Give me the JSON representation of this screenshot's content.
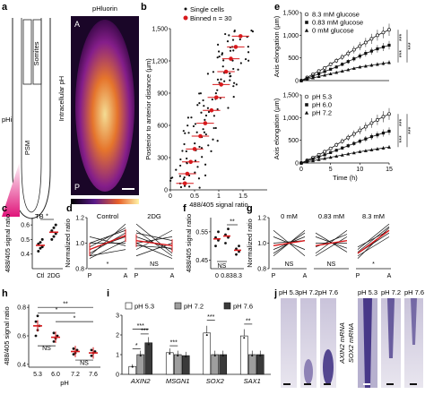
{
  "panels": {
    "a": {
      "letter": "a",
      "psm": "PSM",
      "somites": "Somites",
      "tb": "TB",
      "phi": "pHi",
      "image_title": "pHluorin",
      "image_ylabel": "Intracellular pH",
      "label_A": "A",
      "label_P": "P"
    },
    "b": {
      "letter": "b"
    },
    "c": {
      "letter": "c"
    },
    "d": {
      "letter": "d"
    },
    "e": {
      "letter": "e"
    },
    "f": {
      "letter": "f"
    },
    "g": {
      "letter": "g"
    },
    "h": {
      "letter": "h"
    },
    "i": {
      "letter": "i"
    },
    "j": {
      "letter": "j"
    }
  },
  "colors": {
    "red": "#d7191c",
    "gray_light": "#ffffff",
    "gray_mid": "#9e9e9e",
    "gray_dark": "#3a3a3a",
    "magenta": "#e0157a",
    "stain": "#3b2b80"
  },
  "chart_data": [
    {
      "id": "b",
      "type": "scatter",
      "xlabel": "488/405 signal ratio",
      "ylabel": "Posterior to anterior distance (µm)",
      "xlim": [
        0,
        2
      ],
      "ylim": [
        0,
        1500
      ],
      "xticks": [
        "0",
        "0.5",
        "1",
        "1.5"
      ],
      "xtick_values": [
        0,
        0.5,
        1,
        1.5
      ],
      "yticks": [
        "0",
        "300",
        "600",
        "900",
        "1,200",
        "1,500"
      ],
      "ytick_values": [
        0,
        300,
        600,
        900,
        1200,
        1500
      ],
      "legend": [
        "Single cells",
        "Binned n = 30"
      ],
      "binned": [
        {
          "x": 0.3,
          "y": 60
        },
        {
          "x": 0.35,
          "y": 150
        },
        {
          "x": 0.42,
          "y": 260
        },
        {
          "x": 0.5,
          "y": 380
        },
        {
          "x": 0.62,
          "y": 500
        },
        {
          "x": 0.72,
          "y": 620
        },
        {
          "x": 0.85,
          "y": 740
        },
        {
          "x": 0.95,
          "y": 860
        },
        {
          "x": 1.05,
          "y": 980
        },
        {
          "x": 1.15,
          "y": 1100
        },
        {
          "x": 1.25,
          "y": 1220
        },
        {
          "x": 1.35,
          "y": 1330
        },
        {
          "x": 1.45,
          "y": 1430
        }
      ]
    },
    {
      "id": "c",
      "type": "scatter",
      "ylabel": "488/405 signal ratio",
      "categories": [
        "Ctl",
        "2DG"
      ],
      "ylim": [
        0.3,
        0.65
      ],
      "yticks": [
        "0.4",
        "0.5",
        "0.6"
      ],
      "ytick_values": [
        0.4,
        0.5,
        0.6
      ],
      "significance": "*",
      "points": {
        "Ctl": [
          0.42,
          0.44,
          0.45,
          0.47,
          0.48,
          0.5
        ],
        "2DG": [
          0.5,
          0.52,
          0.54,
          0.56,
          0.58,
          0.6
        ]
      },
      "means": {
        "Ctl": 0.46,
        "2DG": 0.55
      }
    },
    {
      "id": "d",
      "type": "line",
      "ylabel": "Normalized ratio",
      "groups": [
        "Control",
        "2DG"
      ],
      "categories": [
        "P",
        "A"
      ],
      "ylim": [
        0.8,
        1.2
      ],
      "yticks": [
        "0.8",
        "1.0",
        "1.2"
      ],
      "ytick_values": [
        0.8,
        1.0,
        1.2
      ],
      "significance": [
        "*",
        "NS"
      ],
      "lines": {
        "Control": [
          [
            0.9,
            1.15
          ],
          [
            0.95,
            1.05
          ],
          [
            1.0,
            1.1
          ],
          [
            0.92,
            1.08
          ],
          [
            0.88,
            1.02
          ],
          [
            0.97,
            1.12
          ],
          [
            1.05,
            0.98
          ],
          [
            0.9,
            0.95
          ],
          [
            1.0,
            1.0
          ]
        ],
        "2DG": [
          [
            1.1,
            0.9
          ],
          [
            1.0,
            1.05
          ],
          [
            1.05,
            0.95
          ],
          [
            0.95,
            1.1
          ],
          [
            1.15,
            0.92
          ],
          [
            0.9,
            1.0
          ],
          [
            1.0,
            0.88
          ],
          [
            1.08,
            1.02
          ],
          [
            0.98,
            0.96
          ]
        ]
      },
      "means": {
        "Control": [
          0.95,
          1.06
        ],
        "2DG": [
          1.02,
          0.98
        ]
      }
    },
    {
      "id": "e",
      "type": "line",
      "xlabel": "Time (h)",
      "ylabel": "Axis elongation (µm)",
      "xlim": [
        0,
        15
      ],
      "xticks": [
        "0",
        "5",
        "10",
        "15"
      ],
      "xtick_values": [
        0,
        5,
        10,
        15
      ],
      "ylim": [
        0,
        1500
      ],
      "yticks": [
        "0",
        "500",
        "1,000",
        "1,500"
      ],
      "ytick_values": [
        0,
        500,
        1000,
        1500
      ],
      "subplots": [
        {
          "significance": [
            "***",
            "***",
            "***"
          ],
          "series": [
            {
              "name": "8.3 mM glucose",
              "marker": "circle-open",
              "x": [
                0,
                1,
                2,
                3,
                4,
                5,
                6,
                7,
                8,
                9,
                10,
                11,
                12,
                13,
                14,
                15
              ],
              "values": [
                0,
                70,
                140,
                210,
                280,
                360,
                440,
                520,
                600,
                680,
                760,
                840,
                920,
                1000,
                1060,
                1120
              ]
            },
            {
              "name": "0.83 mM glucose",
              "marker": "square",
              "x": [
                0,
                1,
                2,
                3,
                4,
                5,
                6,
                7,
                8,
                9,
                10,
                11,
                12,
                13,
                14,
                15
              ],
              "values": [
                0,
                50,
                100,
                150,
                200,
                250,
                300,
                360,
                420,
                480,
                540,
                600,
                650,
                700,
                740,
                780
              ]
            },
            {
              "name": "0 mM glucose",
              "marker": "triangle",
              "x": [
                0,
                1,
                2,
                3,
                4,
                5,
                6,
                7,
                8,
                9,
                10,
                11,
                12,
                13,
                14,
                15
              ],
              "values": [
                0,
                30,
                60,
                90,
                120,
                150,
                180,
                210,
                240,
                270,
                300,
                320,
                340,
                360,
                380,
                400
              ]
            }
          ]
        },
        {
          "significance": [
            "***",
            "***",
            "***"
          ],
          "series": [
            {
              "name": "pH 5.3",
              "marker": "circle-open",
              "x": [
                0,
                1,
                2,
                3,
                4,
                5,
                6,
                7,
                8,
                9,
                10,
                11,
                12,
                13,
                14,
                15
              ],
              "values": [
                0,
                60,
                120,
                180,
                250,
                320,
                400,
                480,
                560,
                640,
                720,
                800,
                880,
                950,
                1020,
                1080
              ]
            },
            {
              "name": "pH 6.0",
              "marker": "square",
              "x": [
                0,
                1,
                2,
                3,
                4,
                5,
                6,
                7,
                8,
                9,
                10,
                11,
                12,
                13,
                14,
                15
              ],
              "values": [
                0,
                45,
                90,
                135,
                180,
                230,
                280,
                330,
                380,
                430,
                480,
                530,
                580,
                620,
                660,
                700
              ]
            },
            {
              "name": "pH 7.2",
              "marker": "triangle",
              "x": [
                0,
                1,
                2,
                3,
                4,
                5,
                6,
                7,
                8,
                9,
                10,
                11,
                12,
                13,
                14,
                15
              ],
              "values": [
                0,
                25,
                50,
                75,
                100,
                125,
                150,
                175,
                200,
                225,
                250,
                270,
                290,
                310,
                330,
                350
              ]
            }
          ]
        }
      ]
    },
    {
      "id": "f",
      "type": "scatter",
      "ylabel": "488/405 signal ratio",
      "categories": [
        "0",
        "0.83",
        "8.3"
      ],
      "ylim": [
        0.42,
        0.6
      ],
      "yticks": [
        "0.45",
        "0.55"
      ],
      "ytick_values": [
        0.45,
        0.55
      ],
      "significance": [
        "NS",
        "**"
      ],
      "points": {
        "0": [
          0.5,
          0.52,
          0.53,
          0.55
        ],
        "0.83": [
          0.51,
          0.53,
          0.54,
          0.56
        ],
        "8.3": [
          0.47,
          0.48,
          0.49,
          0.5
        ]
      },
      "means": {
        "0": 0.525,
        "0.83": 0.535,
        "8.3": 0.485
      }
    },
    {
      "id": "g",
      "type": "line",
      "ylabel": "Normalized ratio",
      "groups": [
        "0 mM",
        "0.83 mM",
        "8.3 mM"
      ],
      "categories": [
        "P",
        "A"
      ],
      "ylim": [
        0.8,
        1.2
      ],
      "yticks": [
        "0.8",
        "1.0",
        "1.2"
      ],
      "ytick_values": [
        0.8,
        1.0,
        1.2
      ],
      "significance": [
        "NS",
        "NS",
        "*"
      ],
      "lines": {
        "0 mM": [
          [
            0.9,
            1.1
          ],
          [
            1.05,
            0.95
          ],
          [
            0.95,
            1.05
          ],
          [
            1.0,
            1.02
          ],
          [
            1.1,
            0.9
          ],
          [
            0.92,
            1.08
          ]
        ],
        "0.83 mM": [
          [
            0.92,
            1.1
          ],
          [
            1.05,
            0.96
          ],
          [
            0.97,
            1.07
          ],
          [
            1.0,
            1.0
          ],
          [
            1.08,
            0.93
          ],
          [
            0.9,
            1.05
          ]
        ],
        "8.3 mM": [
          [
            0.88,
            1.12
          ],
          [
            0.92,
            1.08
          ],
          [
            0.95,
            1.15
          ],
          [
            0.9,
            1.05
          ],
          [
            0.97,
            1.1
          ],
          [
            0.93,
            1.13
          ]
        ]
      },
      "means": {
        "0 mM": [
          0.98,
          1.02
        ],
        "0.83 mM": [
          0.98,
          1.02
        ],
        "8.3 mM": [
          0.92,
          1.1
        ]
      }
    },
    {
      "id": "h",
      "type": "scatter",
      "xlabel": "pH",
      "ylabel": "488/405 signal ratio",
      "categories": [
        "5.3",
        "6.0",
        "7.2",
        "7.6"
      ],
      "ylim": [
        0.38,
        0.82
      ],
      "yticks": [
        "0.4",
        "0.6",
        "0.8"
      ],
      "ytick_values": [
        0.4,
        0.6,
        0.8
      ],
      "significance": [
        "**",
        "*",
        "*",
        "NS",
        "NS"
      ],
      "points": {
        "5.3": [
          0.6,
          0.64,
          0.67,
          0.7,
          0.74
        ],
        "6.0": [
          0.56,
          0.58,
          0.6,
          0.62
        ],
        "7.2": [
          0.47,
          0.48,
          0.5,
          0.51
        ],
        "7.6": [
          0.46,
          0.48,
          0.49,
          0.5
        ]
      },
      "means": {
        "5.3": 0.67,
        "6.0": 0.59,
        "7.2": 0.49,
        "7.6": 0.48
      }
    },
    {
      "id": "i",
      "type": "bar",
      "ylabel": "Relative expression",
      "categories": [
        "AXIN2",
        "MSGN1",
        "SOX2",
        "SAX1"
      ],
      "ylim": [
        0,
        3
      ],
      "yticks": [
        "0",
        "1",
        "2",
        "3"
      ],
      "ytick_values": [
        0,
        1,
        2,
        3
      ],
      "legend": [
        "pH 5.3",
        "pH 7.2",
        "pH 7.6"
      ],
      "series": [
        {
          "name": "pH 5.3",
          "values": [
            0.4,
            1.1,
            2.1,
            1.95
          ]
        },
        {
          "name": "pH 7.2",
          "values": [
            1.0,
            1.0,
            1.0,
            1.0
          ]
        },
        {
          "name": "pH 7.6",
          "values": [
            1.6,
            0.95,
            1.0,
            1.0
          ]
        }
      ],
      "significance": [
        "*",
        "***",
        "***",
        "***",
        "***",
        "**"
      ]
    }
  ],
  "panel_j": {
    "headers_left": [
      "pH 5.3",
      "pH 7.2",
      "pH 7.6"
    ],
    "headers_right": [
      "pH 5.3",
      "pH 7.2",
      "pH 7.6"
    ],
    "label_left": "AXIN2 mRNA",
    "label_right": "SOX2 mRNA"
  }
}
